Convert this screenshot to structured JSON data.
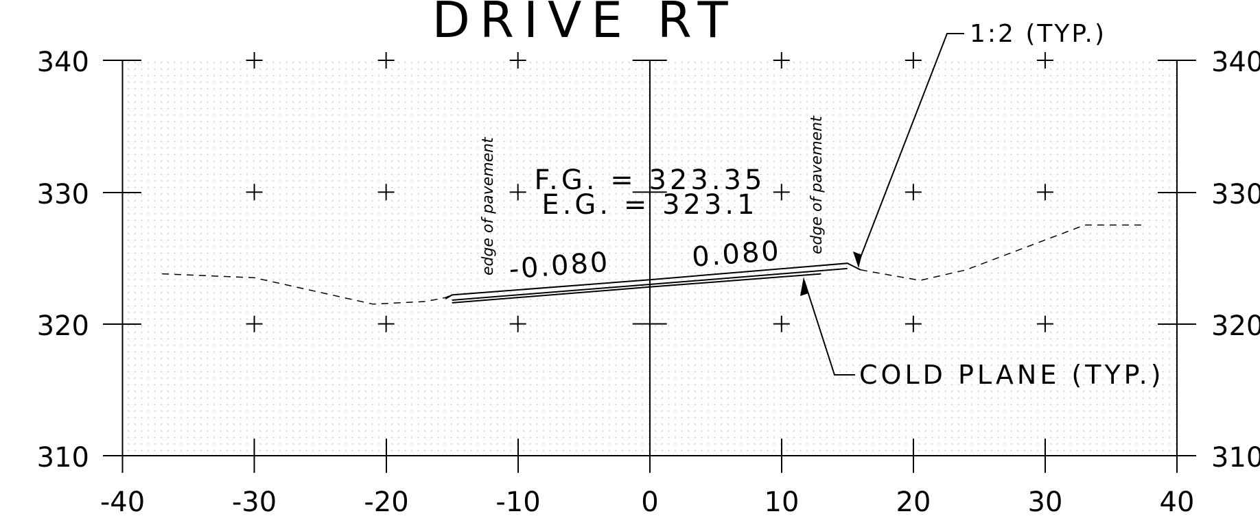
{
  "title": "DRIVE RT",
  "axes": {
    "x_ticks": [
      "-40",
      "-30",
      "-20",
      "-10",
      "0",
      "10",
      "20",
      "30",
      "40"
    ],
    "y_ticks": [
      "340",
      "330",
      "320",
      "310"
    ],
    "xlim": [
      -40,
      40
    ],
    "ylim": [
      310,
      340
    ]
  },
  "annotations": {
    "fg": "F.G. = 323.35",
    "eg": "E.G. = 323.1",
    "left_slope": "-0.080",
    "right_slope": "0.080",
    "edge_left": "edge of pavement",
    "edge_right": "edge of pavement",
    "side_slope": "1:2 (TYP.)",
    "cold_plane": "COLD PLANE (TYP.)"
  },
  "chart_data": {
    "type": "line",
    "title": "DRIVE RT",
    "xlim": [
      -40,
      40
    ],
    "ylim": [
      310,
      340
    ],
    "grid": true,
    "series": [
      {
        "points": [
          [
            -37,
            323.8
          ],
          [
            -30,
            323.5
          ],
          [
            -21,
            321.5
          ],
          [
            -17,
            321.7
          ],
          [
            -15.5,
            322.0
          ],
          [
            -15,
            322.2
          ]
        ]
      },
      {
        "points": [
          [
            16,
            324.1
          ],
          [
            20.5,
            323.3
          ],
          [
            24,
            324.1
          ],
          [
            33,
            327.5
          ],
          [
            37.5,
            327.5
          ]
        ]
      },
      {
        "points": [
          [
            -15.5,
            321.9
          ],
          [
            -15,
            322.2
          ],
          [
            0,
            323.35
          ],
          [
            15,
            324.6
          ],
          [
            15.6,
            324.3
          ],
          [
            16,
            324.1
          ]
        ]
      },
      {
        "points": [
          [
            -15,
            321.8
          ],
          [
            0,
            323.0
          ],
          [
            15,
            324.2
          ]
        ]
      },
      {
        "points": [
          [
            -15,
            321.6
          ],
          [
            0,
            322.8
          ],
          [
            13,
            323.8
          ]
        ]
      }
    ]
  }
}
